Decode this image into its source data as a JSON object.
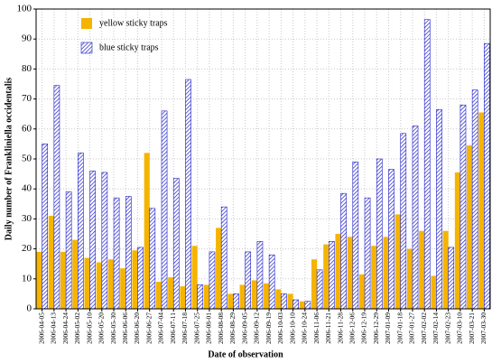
{
  "chart_data": {
    "type": "bar",
    "x_label": "Date of observation",
    "y_label": "Daily number of Frankliniella occidentalis",
    "categories": [
      "2006-04-05",
      "2006-04-13",
      "2006-04-24",
      "2006-05-02",
      "2006-05-10",
      "2006-05-20",
      "2006-05-30",
      "2006-06-06",
      "2006-06-20",
      "2006-06-27",
      "2006-07-04",
      "2006-07-11",
      "2006-07-18",
      "2006-07-25",
      "2006-08-01",
      "2006-08-08",
      "2006-08-29",
      "2006-09-05",
      "2006-09-12",
      "2006-09-19",
      "2006-10-03",
      "2006-10-10",
      "2006-10-24",
      "2006-11-06",
      "2006-11-21",
      "2006-11-28",
      "2006-12-06",
      "2006-12-19",
      "2006-12-29",
      "2007-01-09",
      "2007-01-18",
      "2007-01-27",
      "2007-02-02",
      "2007-02-14",
      "2007-02-23",
      "2007-03-10",
      "2007-03-21",
      "2007-03-30"
    ],
    "series": [
      {
        "name": "yellow sticky traps",
        "color": "#f5b400",
        "hatch": false,
        "values": [
          19,
          31,
          19,
          23,
          17,
          15.5,
          16.5,
          13.5,
          19.5,
          52,
          9,
          10.5,
          7.5,
          21,
          8,
          27,
          5,
          8,
          9.5,
          8.5,
          6.5,
          5,
          2.5,
          16.5,
          21.5,
          25,
          24,
          11.5,
          21,
          24,
          31.5,
          20,
          26,
          11,
          26,
          45.5,
          54.5,
          65.5
        ]
      },
      {
        "name": "blue sticky traps",
        "color": "#2020c8",
        "hatch": true,
        "values": [
          55,
          74.5,
          39,
          52,
          46,
          45.5,
          37,
          37.5,
          20.5,
          33.5,
          66,
          43.5,
          76.5,
          8,
          19,
          34,
          5,
          19,
          22.5,
          18,
          5,
          3,
          2.5,
          13,
          22.5,
          38.5,
          49,
          37,
          50,
          46.5,
          58.5,
          61,
          96.5,
          66.5,
          20.5,
          68,
          73,
          88.5
        ]
      }
    ],
    "ylim": [
      0,
      100
    ],
    "yticks": [
      0,
      10,
      20,
      30,
      40,
      50,
      60,
      70,
      80,
      90,
      100
    ],
    "grid": true,
    "legend": "upper left"
  }
}
